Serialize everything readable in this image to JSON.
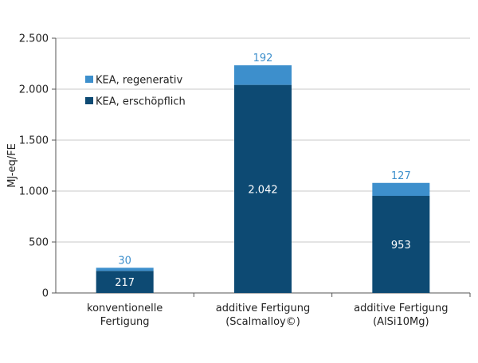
{
  "chart_data": {
    "type": "bar",
    "stacked": true,
    "categories": [
      [
        "konventionelle",
        "Fertigung"
      ],
      [
        "additive Fertigung",
        "(Scalmalloy©)"
      ],
      [
        "additive Fertigung",
        "(AlSi10Mg)"
      ]
    ],
    "series": [
      {
        "name": "KEA, erschöpflich",
        "values": [
          217,
          2042,
          953
        ],
        "labels": [
          "217",
          "2.042",
          "953"
        ],
        "color": "#0d4a73"
      },
      {
        "name": "KEA, regenerativ",
        "values": [
          30,
          192,
          127
        ],
        "labels": [
          "30",
          "192",
          "127"
        ],
        "color": "#3d8fcc"
      }
    ],
    "ylabel": "MJ-eq/FE",
    "ylim": [
      0,
      2500
    ],
    "yticks": [
      0,
      500,
      1000,
      1500,
      2000,
      2500
    ],
    "ytick_labels": [
      "0",
      "500",
      "1.000",
      "1.500",
      "2.000",
      "2.500"
    ],
    "legend_order": [
      1,
      0
    ],
    "legend_position": "top-left",
    "grid": true,
    "grid_color": "#c8c8c8"
  }
}
